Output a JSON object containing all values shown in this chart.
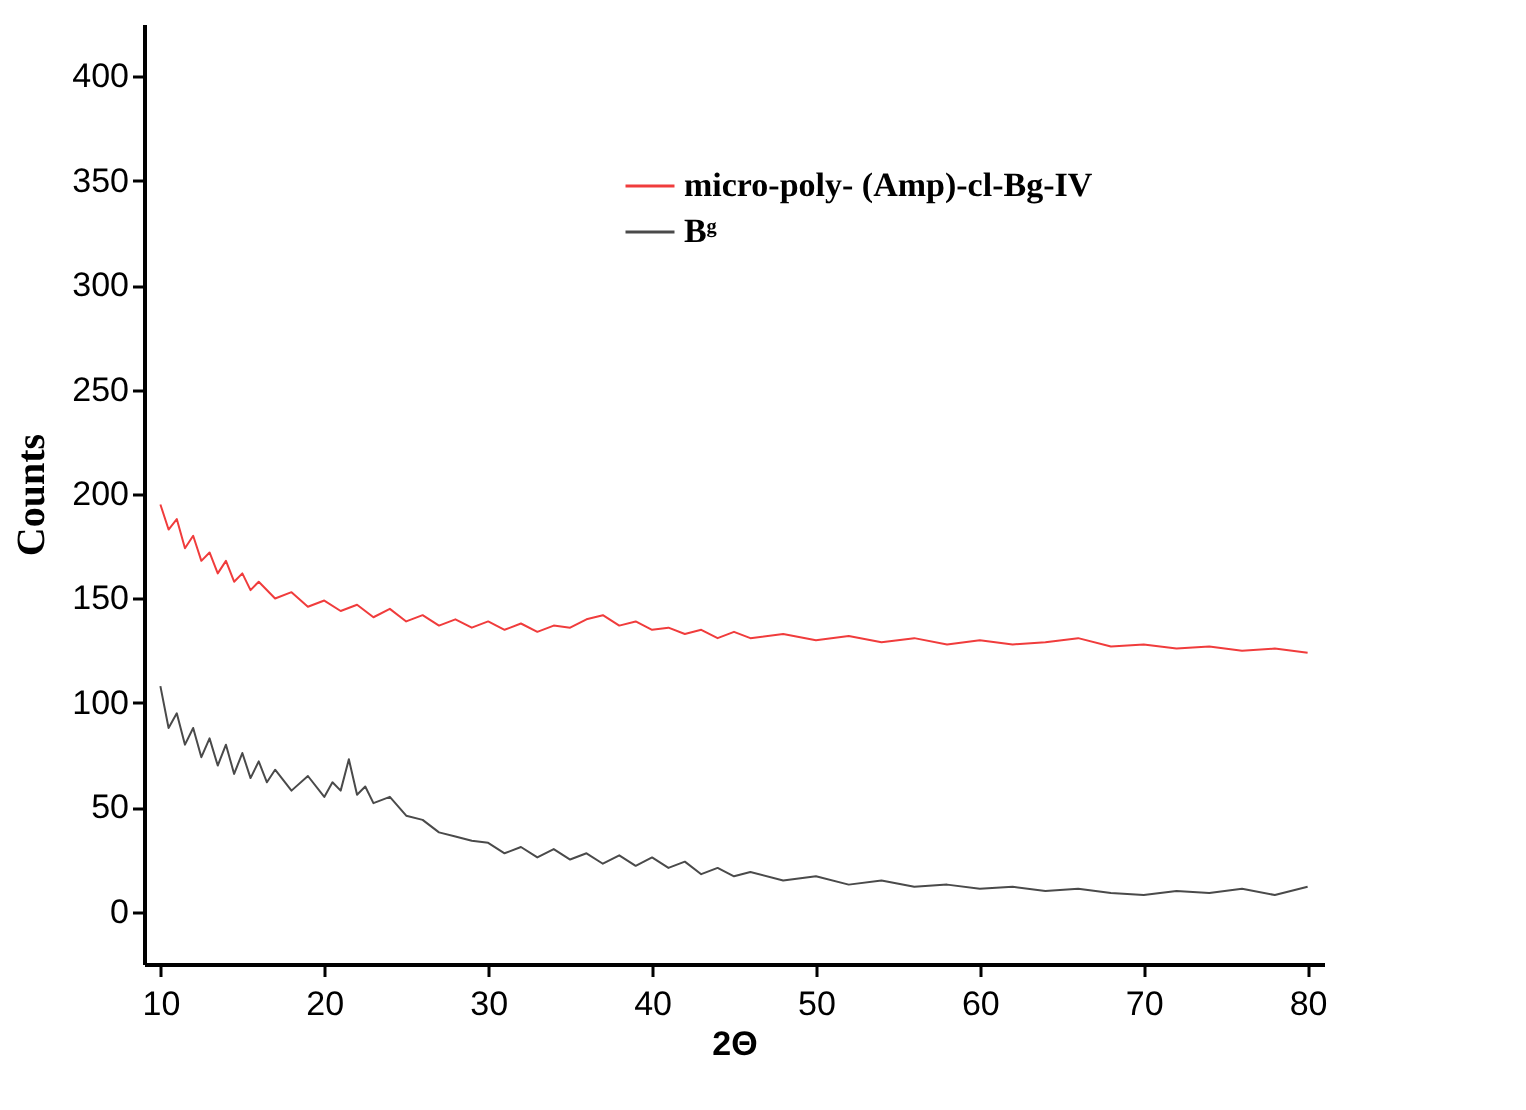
{
  "chart_data": {
    "type": "line",
    "xlabel": "2Θ",
    "ylabel": "Counts",
    "xlim": [
      9,
      81
    ],
    "xticks": [
      10,
      20,
      30,
      40,
      50,
      60,
      70,
      80
    ],
    "ylim": [
      -25,
      425
    ],
    "yticks": [
      0,
      50,
      100,
      150,
      200,
      250,
      300,
      350,
      400
    ],
    "grid": false,
    "legend": "top right",
    "marker": "none",
    "line_style": "solid",
    "series": [
      {
        "name": "micro-poly- (Amp)-cl-Bg-IV",
        "color": "#f03c3c",
        "x": [
          10,
          10.5,
          11,
          11.5,
          12,
          12.5,
          13,
          13.5,
          14,
          14.5,
          15,
          15.5,
          16,
          17,
          18,
          19,
          20,
          21,
          22,
          23,
          24,
          25,
          26,
          27,
          28,
          29,
          30,
          31,
          32,
          33,
          34,
          35,
          36,
          37,
          38,
          39,
          40,
          41,
          42,
          43,
          44,
          45,
          46,
          48,
          50,
          52,
          54,
          56,
          58,
          60,
          62,
          64,
          66,
          68,
          70,
          72,
          74,
          76,
          78,
          80
        ],
        "values": [
          195,
          183,
          188,
          174,
          180,
          168,
          172,
          162,
          168,
          158,
          162,
          154,
          158,
          150,
          153,
          146,
          149,
          144,
          147,
          141,
          145,
          139,
          142,
          137,
          140,
          136,
          139,
          135,
          138,
          134,
          137,
          136,
          140,
          142,
          137,
          139,
          135,
          136,
          133,
          135,
          131,
          134,
          131,
          133,
          130,
          132,
          129,
          131,
          128,
          130,
          128,
          129,
          131,
          127,
          128,
          126,
          127,
          125,
          126,
          124
        ]
      },
      {
        "name": "Bᵍ",
        "color": "#4a4a4a",
        "x": [
          10,
          10.5,
          11,
          11.5,
          12,
          12.5,
          13,
          13.5,
          14,
          14.5,
          15,
          15.5,
          16,
          16.5,
          17,
          18,
          19,
          20,
          20.5,
          21,
          21.5,
          22,
          22.5,
          23,
          24,
          25,
          26,
          27,
          28,
          29,
          30,
          31,
          32,
          33,
          34,
          35,
          36,
          37,
          38,
          39,
          40,
          41,
          42,
          43,
          44,
          45,
          46,
          48,
          50,
          52,
          54,
          56,
          58,
          60,
          62,
          64,
          66,
          68,
          70,
          72,
          74,
          76,
          78,
          80
        ],
        "values": [
          108,
          88,
          95,
          80,
          88,
          74,
          83,
          70,
          80,
          66,
          76,
          64,
          72,
          62,
          68,
          58,
          65,
          55,
          62,
          58,
          73,
          56,
          60,
          52,
          55,
          46,
          44,
          38,
          36,
          34,
          33,
          28,
          31,
          26,
          30,
          25,
          28,
          23,
          27,
          22,
          26,
          21,
          24,
          18,
          21,
          17,
          19,
          15,
          17,
          13,
          15,
          12,
          13,
          11,
          12,
          10,
          11,
          9,
          8,
          10,
          9,
          11,
          8,
          12
        ]
      }
    ]
  }
}
